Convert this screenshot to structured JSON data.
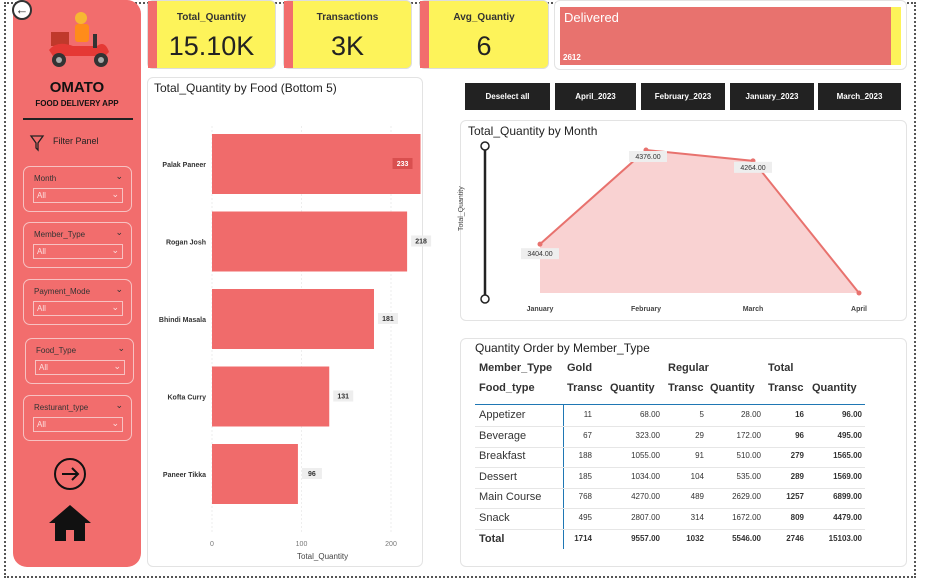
{
  "sidebar": {
    "brand": "OMATO",
    "subtitle": "FOOD DELIVERY APP",
    "filter_panel": "Filter Panel",
    "slicers": [
      {
        "label": "Month",
        "value": "All"
      },
      {
        "label": "Member_Type",
        "value": "All"
      },
      {
        "label": "Payment_Mode",
        "value": "All"
      },
      {
        "label": "Food_Type",
        "value": "All"
      },
      {
        "label": "Resturant_type",
        "value": "All"
      }
    ]
  },
  "cards": [
    {
      "title": "Total_Quantity",
      "value": "15.10K"
    },
    {
      "title": "Transactions",
      "value": "3K"
    },
    {
      "title": "Avg_Quantiy",
      "value": "6"
    }
  ],
  "delivered": {
    "label": "Delivered",
    "value": "2612",
    "fill_fraction": 0.97
  },
  "buttons": [
    "Deselect all",
    "April_2023",
    "February_2023",
    "January_2023",
    "March_2023"
  ],
  "colors": {
    "accent": "#f26d6d",
    "card": "#fdf35a",
    "dark": "#222222"
  },
  "bar_chart": {
    "title": "Total_Quantity by Food (Bottom 5)",
    "xlabel": "Total_Quantity",
    "ticks": [
      "0",
      "100",
      "200"
    ]
  },
  "line_chart": {
    "title": "Total_Quantity by Month",
    "ylabel": "Total_Quantity"
  },
  "chart_data": [
    {
      "type": "bar",
      "title": "Total_Quantity by Food (Bottom 5)",
      "categories": [
        "Palak Paneer",
        "Rogan Josh",
        "Bhindi Masala",
        "Kofta Curry",
        "Paneer Tikka"
      ],
      "values": [
        233,
        218,
        181,
        131,
        96
      ],
      "xlabel": "Total_Quantity",
      "xlim": [
        0,
        250
      ]
    },
    {
      "type": "area",
      "title": "Total_Quantity by Month",
      "categories": [
        "January",
        "February",
        "March",
        "April"
      ],
      "values": [
        3404,
        4376,
        4264,
        2900
      ],
      "labels": [
        "3404.00",
        "4376.00",
        "4264.00",
        ""
      ],
      "ylabel": "Total_Quantity"
    }
  ],
  "table": {
    "title": "Quantity Order by Member_Type",
    "row_header_1": "Member_Type",
    "row_header_2": "Food_type",
    "groups": [
      "Gold",
      "Regular",
      "Total"
    ],
    "col_transc": "Transc",
    "col_quantity": "Quantity",
    "rows": [
      {
        "name": "Appetizer",
        "gt": "11",
        "gq": "68.00",
        "rt": "5",
        "rq": "28.00",
        "tt": "16",
        "tq": "96.00"
      },
      {
        "name": "Beverage",
        "gt": "67",
        "gq": "323.00",
        "rt": "29",
        "rq": "172.00",
        "tt": "96",
        "tq": "495.00"
      },
      {
        "name": "Breakfast",
        "gt": "188",
        "gq": "1055.00",
        "rt": "91",
        "rq": "510.00",
        "tt": "279",
        "tq": "1565.00"
      },
      {
        "name": "Dessert",
        "gt": "185",
        "gq": "1034.00",
        "rt": "104",
        "rq": "535.00",
        "tt": "289",
        "tq": "1569.00"
      },
      {
        "name": "Main Course",
        "gt": "768",
        "gq": "4270.00",
        "rt": "489",
        "rq": "2629.00",
        "tt": "1257",
        "tq": "6899.00"
      },
      {
        "name": "Snack",
        "gt": "495",
        "gq": "2807.00",
        "rt": "314",
        "rq": "1672.00",
        "tt": "809",
        "tq": "4479.00"
      }
    ],
    "total": {
      "name": "Total",
      "gt": "1714",
      "gq": "9557.00",
      "rt": "1032",
      "rq": "5546.00",
      "tt": "2746",
      "tq": "15103.00"
    }
  }
}
